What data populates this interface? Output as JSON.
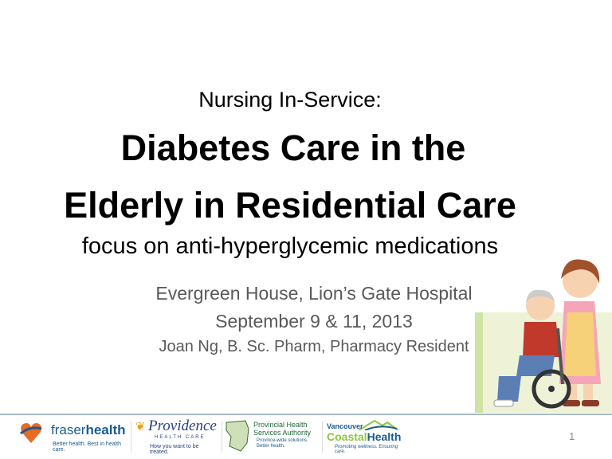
{
  "slide": {
    "pretitle": "Nursing In-Service:",
    "title_line1": "Diabetes Care in the",
    "title_line2": "Elderly in Residential Care",
    "subtitle": "focus on anti-hyperglycemic medications",
    "location": "Evergreen House, Lion’s Gate Hospital",
    "date": "September 9 & 11, 2013",
    "presenter": "Joan Ng, B. Sc. Pharm, Pharmacy Resident",
    "page_number": "1"
  },
  "footer": {
    "logos": [
      {
        "name": "fraserhealth",
        "tagline": "Better health. Best in health care."
      },
      {
        "name": "Providence",
        "sub": "HEALTH CARE",
        "tagline": "How you want to be treated."
      },
      {
        "name": "Provincial Health Services Authority",
        "tagline": "Province-wide solutions. Better health."
      },
      {
        "name": "Vancouver CoastalHealth",
        "tagline": "Promoting wellness. Ensuring care."
      }
    ]
  },
  "colors": {
    "rule": "#a9b9c6",
    "fraser_blue": "#1b5b8f",
    "fraser_orange": "#e86a24",
    "vch_green": "#8dc63f",
    "info_gray": "#595959"
  }
}
